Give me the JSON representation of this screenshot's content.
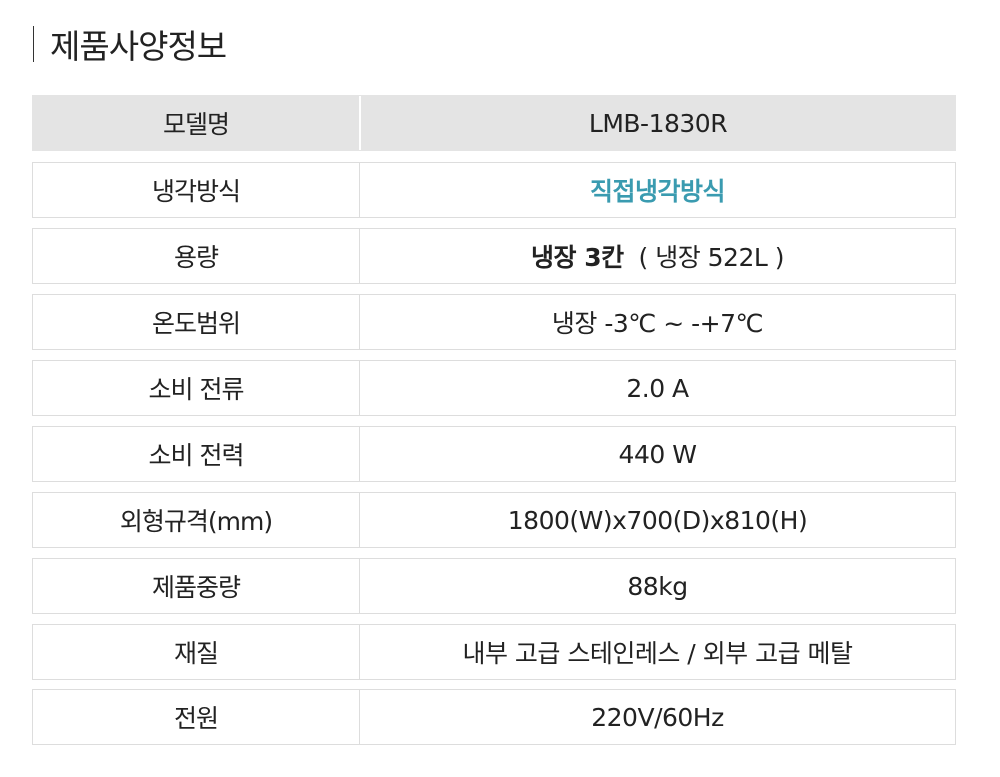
{
  "title": "제품사양정보",
  "accent_color": "#3a9bb0",
  "rows": [
    {
      "label": "모델명",
      "value": "LMB-1830R"
    },
    {
      "label": "냉각방식",
      "value": "직접냉각방식"
    },
    {
      "label": "용량",
      "value_bold": "냉장 3칸",
      "value": "( 냉장 522L )"
    },
    {
      "label": "온도범위",
      "value": "냉장 -3℃ ~ -+7℃"
    },
    {
      "label": "소비 전류",
      "value": "2.0 A"
    },
    {
      "label": "소비 전력",
      "value": "440 W"
    },
    {
      "label": "외형규격(mm)",
      "value": "1800(W)x700(D)x810(H)"
    },
    {
      "label": "제품중량",
      "value": "88kg"
    },
    {
      "label": "재질",
      "value": "내부 고급 스테인레스 / 외부 고급 메탈"
    },
    {
      "label": "전원",
      "value": "220V/60Hz"
    }
  ]
}
